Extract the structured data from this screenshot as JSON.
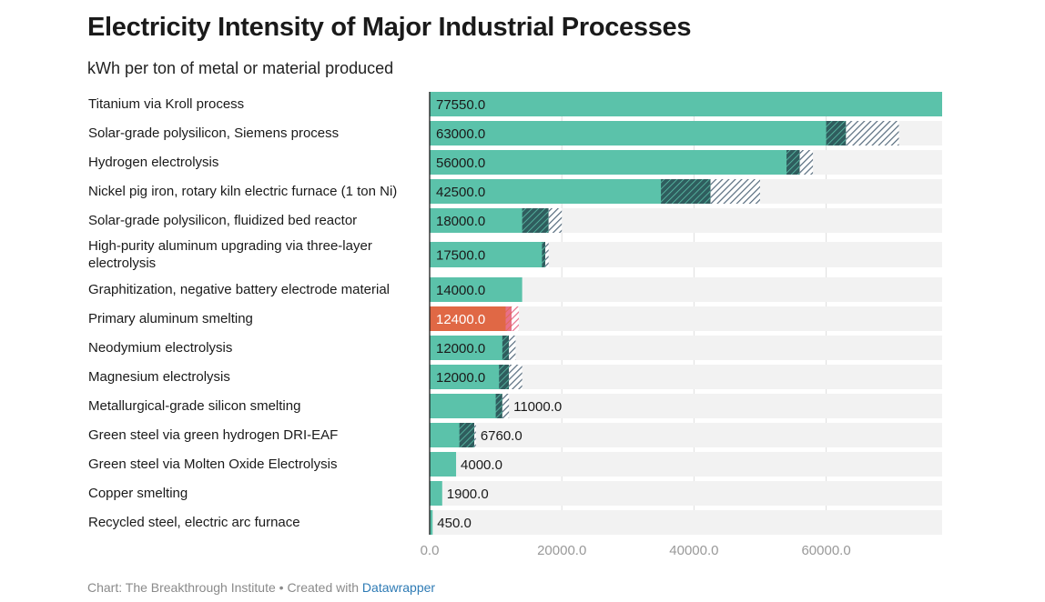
{
  "chart_data": {
    "type": "bar",
    "orientation": "horizontal",
    "title": "Electricity Intensity of Major Industrial Processes",
    "subtitle": "kWh per ton of metal or material produced",
    "xlim": [
      0,
      77550
    ],
    "x_ticks": [
      0,
      20000,
      40000,
      60000
    ],
    "x_tick_labels": [
      "0.0",
      "20000.0",
      "40000.0",
      "60000.0"
    ],
    "colors": {
      "bar": "#5bc2aa",
      "highlight": "#e06845",
      "track": "#f2f2f2",
      "range_dark": "#2f5d5e",
      "range_light": "#566b7d",
      "highlight_range": "#e8708a"
    },
    "categories": [
      {
        "label": "Titanium via Kroll process",
        "value": 77550,
        "value_label": "77550.0",
        "range_dark": null,
        "range_light": null,
        "highlight": false
      },
      {
        "label": "Solar-grade polysilicon, Siemens process",
        "value": 63000,
        "value_label": "63000.0",
        "range_dark": [
          60000,
          63000
        ],
        "range_light": [
          63000,
          71000
        ],
        "highlight": false
      },
      {
        "label": "Hydrogen electrolysis",
        "value": 56000,
        "value_label": "56000.0",
        "range_dark": [
          54000,
          56000
        ],
        "range_light": [
          56000,
          58000
        ],
        "highlight": false
      },
      {
        "label": "Nickel pig iron, rotary kiln electric furnace (1 ton Ni)",
        "value": 42500,
        "value_label": "42500.0",
        "range_dark": [
          35000,
          42500
        ],
        "range_light": [
          42500,
          50000
        ],
        "highlight": false
      },
      {
        "label": "Solar-grade polysilicon, fluidized bed reactor",
        "value": 18000,
        "value_label": "18000.0",
        "range_dark": [
          14000,
          18000
        ],
        "range_light": [
          18000,
          20000
        ],
        "highlight": false
      },
      {
        "label": "High-purity aluminum upgrading via three-layer electrolysis",
        "value": 17500,
        "value_label": "17500.0",
        "range_dark": [
          17000,
          17500
        ],
        "range_light": [
          17500,
          18000
        ],
        "highlight": false
      },
      {
        "label": "Graphitization, negative battery electrode material",
        "value": 14000,
        "value_label": "14000.0",
        "range_dark": null,
        "range_light": null,
        "highlight": false
      },
      {
        "label": "Primary aluminum smelting",
        "value": 12400,
        "value_label": "12400.0",
        "range_dark": [
          11500,
          12400
        ],
        "range_light": [
          12400,
          13500
        ],
        "highlight": true
      },
      {
        "label": "Neodymium electrolysis",
        "value": 12000,
        "value_label": "12000.0",
        "range_dark": [
          11000,
          12000
        ],
        "range_light": [
          12000,
          13000
        ],
        "highlight": false
      },
      {
        "label": "Magnesium electrolysis",
        "value": 12000,
        "value_label": "12000.0",
        "range_dark": [
          10500,
          12000
        ],
        "range_light": [
          12000,
          14000
        ],
        "highlight": false
      },
      {
        "label": "Metallurgical-grade silicon smelting",
        "value": 11000,
        "value_label": "11000.0",
        "range_dark": [
          10000,
          11000
        ],
        "range_light": [
          11000,
          12000
        ],
        "highlight": false
      },
      {
        "label": "Green steel via green hydrogen DRI-EAF",
        "value": 6760,
        "value_label": "6760.0",
        "range_dark": [
          4500,
          6760
        ],
        "range_light": [
          6760,
          7000
        ],
        "highlight": false
      },
      {
        "label": "Green steel via Molten Oxide Electrolysis",
        "value": 4000,
        "value_label": "4000.0",
        "range_dark": null,
        "range_light": null,
        "highlight": false
      },
      {
        "label": "Copper smelting",
        "value": 1900,
        "value_label": "1900.0",
        "range_dark": null,
        "range_light": null,
        "highlight": false
      },
      {
        "label": "Recycled steel, electric arc furnace",
        "value": 450,
        "value_label": "450.0",
        "range_dark": null,
        "range_light": null,
        "highlight": false
      }
    ]
  },
  "footer": {
    "source": "Chart: The Breakthrough Institute",
    "separator": "•",
    "created_with": "Created with",
    "tool": "Datawrapper"
  }
}
